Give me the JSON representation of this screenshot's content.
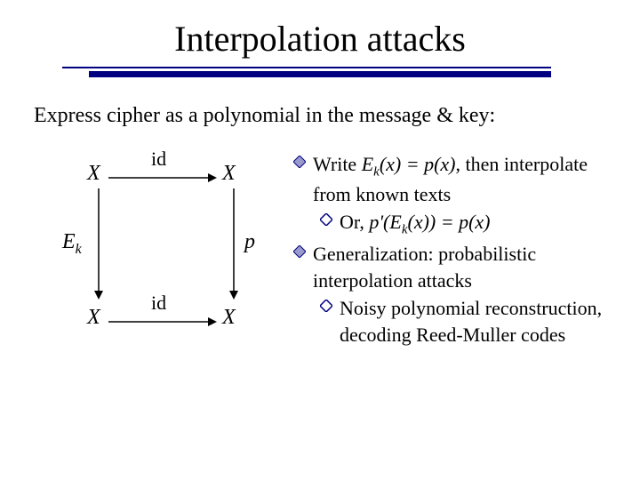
{
  "title": "Interpolation attacks",
  "subtitle": "Express cipher as a polynomial in the message & key:",
  "diagram": {
    "nodes": {
      "X_tl": "X",
      "X_tr": "X",
      "Ek": "E",
      "Ek_sub": "k",
      "p": "p",
      "X_bl": "X",
      "X_br": "X"
    },
    "edges": {
      "top_label": "id",
      "bottom_label": "id"
    },
    "colors": {
      "arrow": "#000000",
      "text": "#000000"
    }
  },
  "bullets": [
    {
      "level": 1,
      "html": "Write <span class='ital'>E<span class='sub'>k</span>(x) = p(x)</span>, then interpolate from known texts"
    },
    {
      "level": 2,
      "html": "Or, <span class='ital'>p'(E<span class='sub'>k</span>(x)) = p(x)</span>"
    },
    {
      "level": 1,
      "html": "Generalization: probabilistic interpolation attacks"
    },
    {
      "level": 2,
      "html": "Noisy polynomial reconstruction, decoding Reed-Muller codes"
    }
  ],
  "style": {
    "accent": "#000080",
    "bullet_fill": "#9999cc",
    "background": "#ffffff",
    "title_fontsize": 40,
    "subtitle_fontsize": 24,
    "body_fontsize": 22
  }
}
